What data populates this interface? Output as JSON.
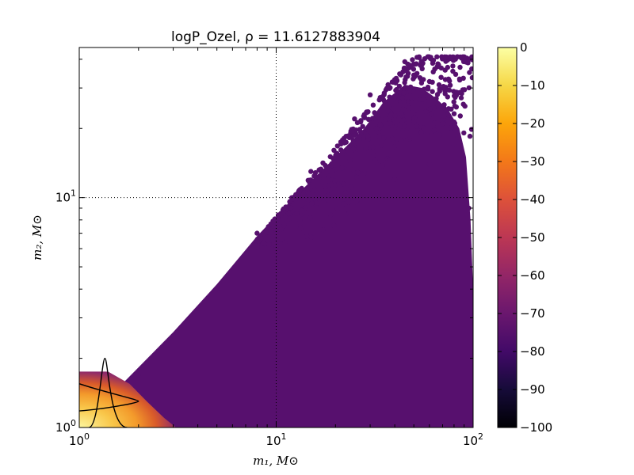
{
  "chart_data": {
    "type": "scatter",
    "title": "logP_Ozel, ρ = 11.6127883904",
    "xlabel": "m₁, M⊙",
    "ylabel": "m₂, M⊙",
    "xscale": "log",
    "yscale": "log",
    "xlim": [
      1,
      100
    ],
    "ylim": [
      1,
      45
    ],
    "x_ticks": [
      {
        "value": 1,
        "base": "10",
        "exp": "0"
      },
      {
        "value": 10,
        "base": "10",
        "exp": "1"
      },
      {
        "value": 100,
        "base": "10",
        "exp": "2"
      }
    ],
    "y_ticks": [
      {
        "value": 1,
        "base": "10",
        "exp": "0"
      },
      {
        "value": 10,
        "base": "10",
        "exp": "1"
      }
    ],
    "reference_lines": {
      "x": 10,
      "y": 10
    },
    "colorbar": {
      "label_values": [
        0,
        -10,
        -20,
        -30,
        -40,
        -50,
        -60,
        -70,
        -80,
        -90,
        -100
      ],
      "range": [
        -100,
        0
      ],
      "colormap": "inferno"
    },
    "series": [
      {
        "kind": "points",
        "color_value": -76,
        "color": "#57106e",
        "region": "m2 <= m1, m1 in [1,100], m2 in [1,~40]",
        "sample_points": [
          [
            45,
            39
          ],
          [
            55,
            38
          ],
          [
            50,
            34
          ],
          [
            37,
            31
          ],
          [
            60,
            32
          ],
          [
            30,
            28
          ],
          [
            65,
            27
          ],
          [
            25,
            22
          ],
          [
            70,
            21
          ],
          [
            80,
            17
          ],
          [
            20,
            15
          ],
          [
            15,
            13
          ],
          [
            90,
            11
          ],
          [
            12,
            10
          ],
          [
            8,
            7
          ],
          [
            5,
            4
          ],
          [
            3,
            2.5
          ],
          [
            2,
            1.7
          ],
          [
            60,
            14
          ],
          [
            40,
            12
          ],
          [
            95,
            9
          ]
        ]
      },
      {
        "kind": "points",
        "color_value": -15,
        "color": "#f5a623",
        "region": "m1 in [1,~3], m2 in [1,~1.7], m2 <= m1 (hot region)"
      }
    ],
    "contours": [
      {
        "type": "x-marginal",
        "peak_m1": 1.35
      },
      {
        "type": "y-marginal",
        "peak_m2": 1.3
      }
    ]
  }
}
